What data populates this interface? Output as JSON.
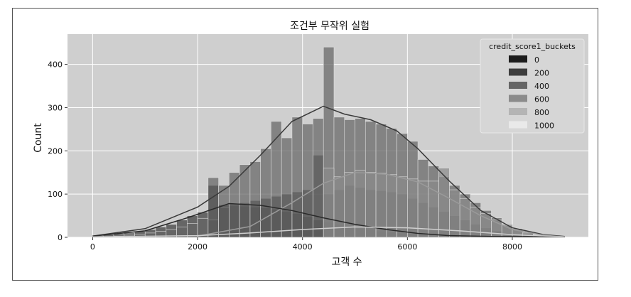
{
  "chart_data": {
    "type": "bar",
    "title": "조건부 무작위 실험",
    "xlabel": "고객 수",
    "ylabel": "Count",
    "xlim": [
      -480,
      9450
    ],
    "ylim": [
      0,
      470
    ],
    "x_ticks": [
      0,
      2000,
      4000,
      6000,
      8000
    ],
    "y_ticks": [
      0,
      100,
      200,
      300,
      400
    ],
    "bin_edges_start": 0,
    "bin_width": 200,
    "legend": {
      "title": "credit_score1_buckets",
      "position": "top-right",
      "entries": [
        {
          "label": "0",
          "color": "#1c1c1c"
        },
        {
          "label": "200",
          "color": "#3d3d3d"
        },
        {
          "label": "400",
          "color": "#656565"
        },
        {
          "label": "600",
          "color": "#8b8b8b"
        },
        {
          "label": "800",
          "color": "#b4b4b4"
        },
        {
          "label": "1000",
          "color": "#e9e9e9"
        }
      ]
    },
    "series": [
      {
        "name": "0",
        "color": "#1c1c1c",
        "values": [
          0,
          0,
          0,
          0,
          0,
          0,
          0,
          0,
          0,
          0,
          0,
          120,
          75,
          78,
          72,
          70,
          68,
          65,
          60,
          55,
          48,
          40,
          35,
          30,
          25,
          20,
          18,
          15,
          12,
          10,
          8,
          6,
          4,
          3,
          2,
          1,
          1,
          0,
          0,
          0,
          0,
          0,
          0,
          0,
          0
        ]
      },
      {
        "name": "200",
        "color": "#3d3d3d",
        "values": [
          4,
          6,
          8,
          10,
          14,
          18,
          24,
          30,
          40,
          50,
          58,
          40,
          70,
          75,
          80,
          85,
          90,
          95,
          100,
          105,
          110,
          190,
          100,
          110,
          120,
          115,
          110,
          108,
          105,
          100,
          90,
          80,
          70,
          60,
          50,
          40,
          30,
          22,
          15,
          10,
          7,
          5,
          3,
          2,
          1
        ]
      },
      {
        "name": "400",
        "color": "#656565",
        "values": [
          1,
          2,
          3,
          5,
          7,
          10,
          14,
          18,
          24,
          32,
          44,
          138,
          120,
          150,
          168,
          175,
          205,
          268,
          230,
          278,
          262,
          275,
          440,
          278,
          272,
          275,
          268,
          262,
          252,
          240,
          222,
          180,
          165,
          140,
          120,
          100,
          80,
          62,
          45,
          30,
          20,
          12,
          6,
          3,
          1
        ]
      },
      {
        "name": "600",
        "color": "#8b8b8b",
        "values": [
          0,
          0,
          0,
          0,
          0,
          0,
          0,
          0,
          0,
          0,
          0,
          0,
          0,
          0,
          0,
          0,
          0,
          0,
          0,
          0,
          0,
          0,
          160,
          140,
          150,
          155,
          150,
          148,
          145,
          140,
          135,
          130,
          130,
          160,
          110,
          90,
          70,
          55,
          40,
          28,
          18,
          10,
          5,
          2,
          1
        ]
      },
      {
        "name": "800",
        "color": "#b4b4b4",
        "values": [
          0,
          0,
          0,
          0,
          0,
          0,
          0,
          0,
          0,
          0,
          0,
          0,
          0,
          0,
          0,
          0,
          0,
          0,
          0,
          0,
          0,
          0,
          0,
          0,
          0,
          0,
          0,
          0,
          0,
          0,
          0,
          0,
          0,
          0,
          0,
          0,
          0,
          0,
          0,
          0,
          0,
          0,
          0,
          0,
          0
        ]
      },
      {
        "name": "1000",
        "color": "#e9e9e9",
        "values": [
          0,
          0,
          0,
          0,
          0,
          0,
          0,
          0,
          0,
          0,
          0,
          0,
          0,
          0,
          0,
          0,
          0,
          0,
          0,
          0,
          0,
          0,
          0,
          0,
          0,
          0,
          0,
          0,
          0,
          0,
          0,
          0,
          0,
          0,
          0,
          0,
          0,
          0,
          0,
          0,
          0,
          0,
          0,
          0,
          0
        ]
      }
    ],
    "kde": [
      {
        "name": "400",
        "color": "#3a3a3a",
        "points": [
          [
            0,
            3
          ],
          [
            1000,
            20
          ],
          [
            2000,
            70
          ],
          [
            2600,
            118
          ],
          [
            3200,
            190
          ],
          [
            3800,
            268
          ],
          [
            4400,
            303
          ],
          [
            4800,
            285
          ],
          [
            5300,
            272
          ],
          [
            5800,
            246
          ],
          [
            6200,
            205
          ],
          [
            6800,
            130
          ],
          [
            7400,
            62
          ],
          [
            8000,
            22
          ],
          [
            8600,
            6
          ],
          [
            9000,
            2
          ]
        ]
      },
      {
        "name": "600",
        "color": "#9a9a9a",
        "points": [
          [
            2000,
            3
          ],
          [
            3000,
            25
          ],
          [
            3800,
            80
          ],
          [
            4400,
            125
          ],
          [
            5000,
            150
          ],
          [
            5600,
            146
          ],
          [
            6200,
            128
          ],
          [
            6800,
            90
          ],
          [
            7400,
            50
          ],
          [
            8000,
            18
          ],
          [
            8600,
            5
          ],
          [
            9000,
            1
          ]
        ]
      },
      {
        "name": "0",
        "color": "#2a2a2a",
        "points": [
          [
            0,
            3
          ],
          [
            1000,
            15
          ],
          [
            1800,
            45
          ],
          [
            2600,
            78
          ],
          [
            3200,
            74
          ],
          [
            3800,
            62
          ],
          [
            4400,
            45
          ],
          [
            5000,
            30
          ],
          [
            5600,
            18
          ],
          [
            6200,
            9
          ],
          [
            6800,
            4
          ],
          [
            7600,
            2
          ],
          [
            9000,
            1
          ]
        ]
      },
      {
        "name": "800",
        "color": "#cfcfcf",
        "points": [
          [
            0,
            1
          ],
          [
            2000,
            4
          ],
          [
            3000,
            10
          ],
          [
            4000,
            18
          ],
          [
            5000,
            24
          ],
          [
            6000,
            22
          ],
          [
            7000,
            15
          ],
          [
            8000,
            6
          ],
          [
            9000,
            1
          ]
        ]
      }
    ]
  }
}
